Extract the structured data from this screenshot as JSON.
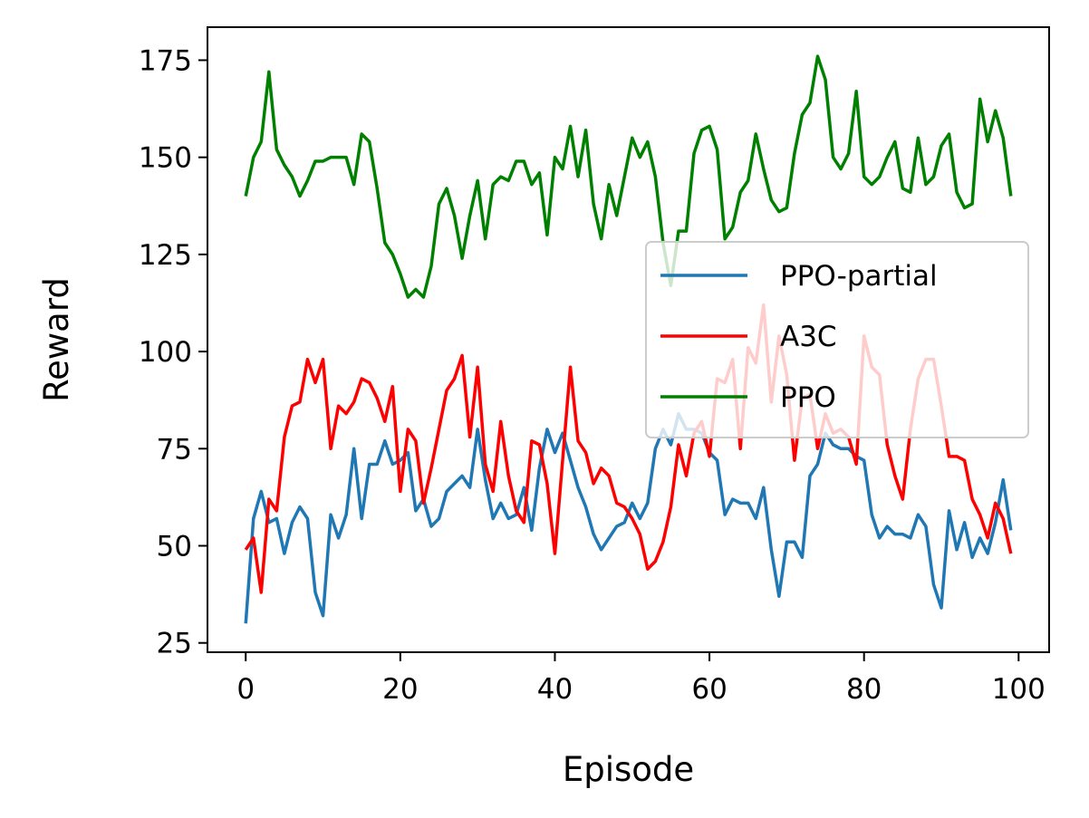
{
  "chart_data": {
    "type": "line",
    "title": "",
    "xlabel": "Episode",
    "ylabel": "Reward",
    "xlim": [
      -4.95,
      103.95
    ],
    "ylim": [
      22.6,
      183.5
    ],
    "xticks": [
      0,
      20,
      40,
      60,
      80,
      100
    ],
    "yticks": [
      25,
      50,
      75,
      100,
      125,
      150,
      175
    ],
    "grid": false,
    "legend_position": "center-right",
    "series": [
      {
        "name": "PPO-partial",
        "color": "#1f77b4",
        "values": [
          30,
          57,
          64,
          56,
          57,
          48,
          56,
          60,
          57,
          38,
          32,
          58,
          52,
          58,
          75,
          57,
          71,
          71,
          77,
          71,
          72,
          74,
          59,
          62,
          55,
          57,
          64,
          66,
          68,
          65,
          80,
          67,
          57,
          61,
          57,
          58,
          65,
          54,
          70,
          80,
          74,
          79,
          72,
          65,
          60,
          53,
          49,
          52,
          55,
          56,
          61,
          57,
          61,
          75,
          80,
          76,
          84,
          80,
          80,
          79,
          74,
          72,
          58,
          62,
          61,
          61,
          57,
          65,
          49,
          37,
          51,
          51,
          47,
          68,
          71,
          79,
          76,
          75,
          75,
          73,
          72,
          58,
          52,
          55,
          53,
          53,
          52,
          58,
          55,
          40,
          34,
          59,
          49,
          56,
          47,
          52,
          48,
          56,
          67,
          54
        ]
      },
      {
        "name": "A3C",
        "color": "#ff0000",
        "values": [
          49,
          52,
          38,
          62,
          59,
          78,
          86,
          87,
          98,
          92,
          98,
          75,
          86,
          84,
          87,
          93,
          92,
          88,
          82,
          91,
          64,
          80,
          77,
          61,
          70,
          80,
          90,
          93,
          99,
          78,
          96,
          71,
          64,
          82,
          68,
          59,
          56,
          77,
          76,
          66,
          48,
          72,
          96,
          77,
          74,
          66,
          70,
          68,
          61,
          60,
          57,
          53,
          44,
          46,
          51,
          60,
          76,
          68,
          79,
          82,
          73,
          93,
          92,
          98,
          75,
          101,
          97,
          112,
          87,
          104,
          94,
          72,
          88,
          89,
          75,
          84,
          79,
          80,
          78,
          71,
          104,
          96,
          94,
          76,
          68,
          62,
          80,
          93,
          98,
          98,
          86,
          73,
          73,
          72,
          62,
          58,
          52,
          61,
          57,
          48
        ]
      },
      {
        "name": "PPO",
        "color": "#008000",
        "values": [
          140,
          150,
          154,
          172,
          152,
          148,
          145,
          140,
          144,
          149,
          149,
          150,
          150,
          150,
          143,
          156,
          154,
          142,
          128,
          125,
          120,
          114,
          116,
          114,
          122,
          138,
          142,
          135,
          124,
          135,
          144,
          129,
          143,
          145,
          144,
          149,
          149,
          143,
          146,
          130,
          150,
          147,
          158,
          145,
          157,
          138,
          129,
          143,
          135,
          145,
          155,
          150,
          154,
          145,
          128,
          117,
          131,
          131,
          151,
          157,
          158,
          152,
          129,
          132,
          141,
          144,
          156,
          147,
          139,
          136,
          137,
          151,
          161,
          164,
          176,
          170,
          150,
          147,
          151,
          167,
          145,
          143,
          145,
          150,
          154,
          142,
          141,
          155,
          143,
          145,
          153,
          156,
          141,
          137,
          138,
          165,
          154,
          162,
          155,
          140
        ]
      }
    ]
  }
}
